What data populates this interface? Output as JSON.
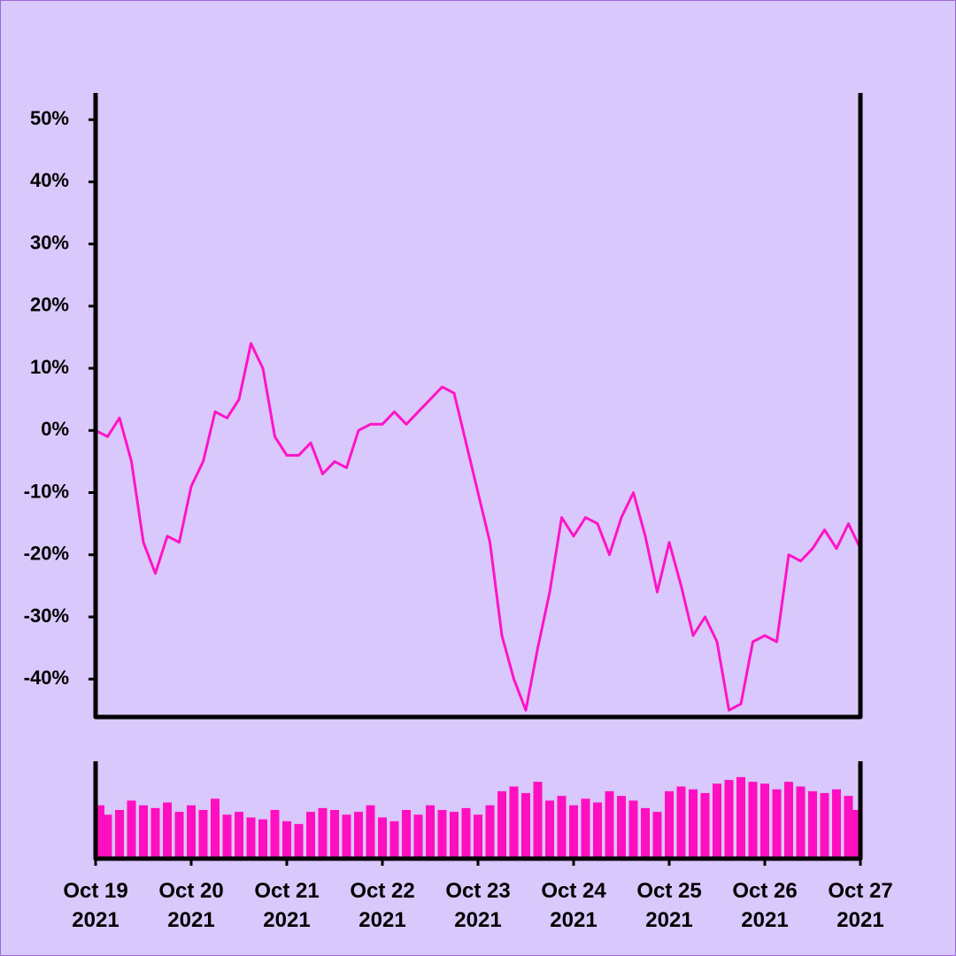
{
  "chart_data": [
    {
      "type": "line",
      "color": "#ff14c8",
      "x": [
        "2021-10-19T00:00",
        "2021-10-19T03:00",
        "2021-10-19T06:00",
        "2021-10-19T09:00",
        "2021-10-19T12:00",
        "2021-10-19T15:00",
        "2021-10-19T18:00",
        "2021-10-19T21:00",
        "2021-10-20T00:00",
        "2021-10-20T03:00",
        "2021-10-20T06:00",
        "2021-10-20T09:00",
        "2021-10-20T12:00",
        "2021-10-20T15:00",
        "2021-10-20T18:00",
        "2021-10-20T21:00",
        "2021-10-21T00:00",
        "2021-10-21T03:00",
        "2021-10-21T06:00",
        "2021-10-21T09:00",
        "2021-10-21T12:00",
        "2021-10-21T15:00",
        "2021-10-21T18:00",
        "2021-10-21T21:00",
        "2021-10-22T00:00",
        "2021-10-22T03:00",
        "2021-10-22T06:00",
        "2021-10-22T09:00",
        "2021-10-22T12:00",
        "2021-10-22T15:00",
        "2021-10-22T18:00",
        "2021-10-22T21:00",
        "2021-10-23T00:00",
        "2021-10-23T03:00",
        "2021-10-23T06:00",
        "2021-10-23T09:00",
        "2021-10-23T12:00",
        "2021-10-23T15:00",
        "2021-10-23T18:00",
        "2021-10-23T21:00",
        "2021-10-24T00:00",
        "2021-10-24T03:00",
        "2021-10-24T06:00",
        "2021-10-24T09:00",
        "2021-10-24T12:00",
        "2021-10-24T15:00",
        "2021-10-24T18:00",
        "2021-10-24T21:00",
        "2021-10-25T00:00",
        "2021-10-25T03:00",
        "2021-10-25T06:00",
        "2021-10-25T09:00",
        "2021-10-25T12:00",
        "2021-10-25T15:00",
        "2021-10-25T18:00",
        "2021-10-25T21:00",
        "2021-10-26T00:00",
        "2021-10-26T03:00",
        "2021-10-26T06:00",
        "2021-10-26T09:00",
        "2021-10-26T12:00",
        "2021-10-26T15:00",
        "2021-10-26T18:00",
        "2021-10-26T21:00",
        "2021-10-27T00:00"
      ],
      "values": [
        0,
        -1,
        2,
        -5,
        -18,
        -23,
        -17,
        -18,
        -9,
        -5,
        3,
        2,
        5,
        14,
        10,
        -1,
        -4,
        -4,
        -2,
        -7,
        -5,
        -6,
        0,
        1,
        1,
        3,
        1,
        3,
        5,
        7,
        6,
        -2,
        -10,
        -18,
        -33,
        -40,
        -45,
        -35,
        -26,
        -14,
        -17,
        -14,
        -15,
        -20,
        -14,
        -10,
        -17,
        -26,
        -18,
        -25,
        -33,
        -30,
        -34,
        -45,
        -44,
        -34,
        -33,
        -34,
        -20,
        -21,
        -19,
        -16,
        -19,
        -15,
        -19
      ],
      "xlim": [
        "2021-10-19T00:00",
        "2021-10-27T00:00"
      ],
      "ylim": [
        -46.1,
        54.3
      ],
      "yticks": [
        {
          "value": -40,
          "label": "-40%"
        },
        {
          "value": -30,
          "label": "-30%"
        },
        {
          "value": -20,
          "label": "-20%"
        },
        {
          "value": -10,
          "label": "-10%"
        },
        {
          "value": 0,
          "label": "0%"
        },
        {
          "value": 10,
          "label": "10%"
        },
        {
          "value": 20,
          "label": "20%"
        },
        {
          "value": 30,
          "label": "30%"
        },
        {
          "value": 40,
          "label": "40%"
        },
        {
          "value": 50,
          "label": "50%"
        }
      ]
    },
    {
      "type": "bar",
      "color": "#ff0fc0",
      "x": [
        "2021-10-19T00:00",
        "2021-10-19T03:00",
        "2021-10-19T06:00",
        "2021-10-19T09:00",
        "2021-10-19T12:00",
        "2021-10-19T15:00",
        "2021-10-19T18:00",
        "2021-10-19T21:00",
        "2021-10-20T00:00",
        "2021-10-20T03:00",
        "2021-10-20T06:00",
        "2021-10-20T09:00",
        "2021-10-20T12:00",
        "2021-10-20T15:00",
        "2021-10-20T18:00",
        "2021-10-20T21:00",
        "2021-10-21T00:00",
        "2021-10-21T03:00",
        "2021-10-21T06:00",
        "2021-10-21T09:00",
        "2021-10-21T12:00",
        "2021-10-21T15:00",
        "2021-10-21T18:00",
        "2021-10-21T21:00",
        "2021-10-22T00:00",
        "2021-10-22T03:00",
        "2021-10-22T06:00",
        "2021-10-22T09:00",
        "2021-10-22T12:00",
        "2021-10-22T15:00",
        "2021-10-22T18:00",
        "2021-10-22T21:00",
        "2021-10-23T00:00",
        "2021-10-23T03:00",
        "2021-10-23T06:00",
        "2021-10-23T09:00",
        "2021-10-23T12:00",
        "2021-10-23T15:00",
        "2021-10-23T18:00",
        "2021-10-23T21:00",
        "2021-10-24T00:00",
        "2021-10-24T03:00",
        "2021-10-24T06:00",
        "2021-10-24T09:00",
        "2021-10-24T12:00",
        "2021-10-24T15:00",
        "2021-10-24T18:00",
        "2021-10-24T21:00",
        "2021-10-25T00:00",
        "2021-10-25T03:00",
        "2021-10-25T06:00",
        "2021-10-25T09:00",
        "2021-10-25T12:00",
        "2021-10-25T15:00",
        "2021-10-25T18:00",
        "2021-10-25T21:00",
        "2021-10-26T00:00",
        "2021-10-26T03:00",
        "2021-10-26T06:00",
        "2021-10-26T09:00",
        "2021-10-26T12:00",
        "2021-10-26T15:00",
        "2021-10-26T18:00",
        "2021-10-26T21:00",
        "2021-10-27T00:00"
      ],
      "values": [
        55,
        45,
        50,
        60,
        55,
        52,
        58,
        48,
        55,
        50,
        62,
        45,
        48,
        42,
        40,
        50,
        38,
        35,
        48,
        52,
        50,
        45,
        48,
        55,
        42,
        38,
        50,
        45,
        55,
        50,
        48,
        52,
        45,
        55,
        70,
        75,
        68,
        80,
        60,
        65,
        55,
        62,
        58,
        70,
        65,
        60,
        52,
        48,
        70,
        75,
        72,
        68,
        78,
        82,
        85,
        80,
        78,
        72,
        80,
        75,
        70,
        68,
        72,
        65,
        50
      ],
      "xlim": [
        "2021-10-19T00:00",
        "2021-10-27T00:00"
      ],
      "ylim": [
        0,
        100
      ],
      "xticks": [
        {
          "value": "2021-10-19T00:00",
          "label": "Oct 19 2021"
        },
        {
          "value": "2021-10-20T00:00",
          "label": "Oct 20 2021"
        },
        {
          "value": "2021-10-21T00:00",
          "label": "Oct 21 2021"
        },
        {
          "value": "2021-10-22T00:00",
          "label": "Oct 22 2021"
        },
        {
          "value": "2021-10-23T00:00",
          "label": "Oct 23 2021"
        },
        {
          "value": "2021-10-24T00:00",
          "label": "Oct 24 2021"
        },
        {
          "value": "2021-10-25T00:00",
          "label": "Oct 25 2021"
        },
        {
          "value": "2021-10-26T00:00",
          "label": "Oct 26 2021"
        },
        {
          "value": "2021-10-27T00:00",
          "label": "Oct 27 2021"
        }
      ]
    }
  ]
}
